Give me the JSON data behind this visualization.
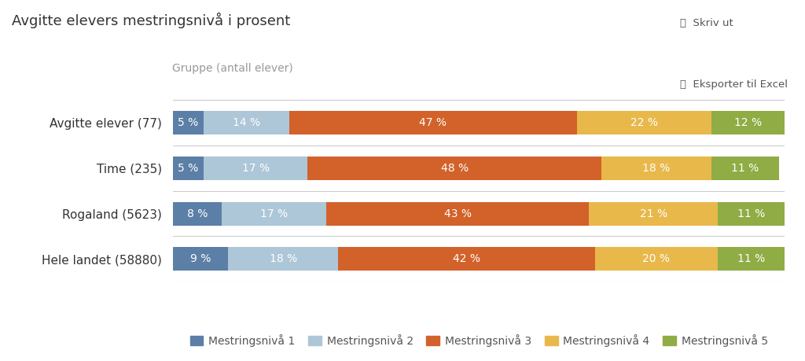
{
  "title": "Avgitte elevers mestringsnivå i prosent",
  "subtitle": "Gruppe (antall elever)",
  "groups": [
    "Avgitte elever (77)",
    "Time (235)",
    "Rogaland (5623)",
    "Hele landet (58880)"
  ],
  "levels": [
    "Mestringsnivå 1",
    "Mestringsnivå 2",
    "Mestringsnivå 3",
    "Mestringsnivå 4",
    "Mestringsnivå 5"
  ],
  "values": [
    [
      5,
      14,
      47,
      22,
      12
    ],
    [
      5,
      17,
      48,
      18,
      11
    ],
    [
      8,
      17,
      43,
      21,
      11
    ],
    [
      9,
      18,
      42,
      20,
      11
    ]
  ],
  "colors": [
    "#5b7fa6",
    "#adc6d8",
    "#d2622a",
    "#e8b84b",
    "#8fac45"
  ],
  "bg_color": "#ffffff",
  "bar_height": 0.52,
  "title_fontsize": 13,
  "subtitle_fontsize": 10,
  "label_fontsize": 10,
  "tick_fontsize": 11,
  "legend_fontsize": 10,
  "top_right_texts": [
    "⎙  Skriv ut",
    "⤓  Eksporter til Excel"
  ],
  "separator_color": "#cccccc",
  "text_color": "#333333",
  "label_color": "#ffffff"
}
